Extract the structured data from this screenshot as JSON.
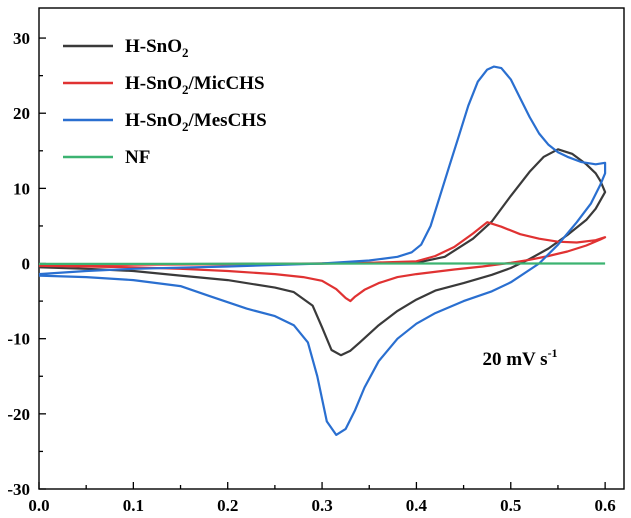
{
  "chart_data": {
    "type": "line",
    "title": "",
    "xlabel": "",
    "ylabel": "",
    "xlim": [
      0.0,
      0.62
    ],
    "ylim": [
      -30,
      34
    ],
    "x_ticks": [
      "0.0",
      "0.1",
      "0.2",
      "0.3",
      "0.4",
      "0.5",
      "0.6"
    ],
    "y_ticks": [
      "30",
      "20",
      "10",
      "0",
      "-10",
      "-20",
      "-30"
    ],
    "grid": false,
    "legend_position": "top-left",
    "annotation": {
      "text": "20 mV s",
      "superscript": "-1",
      "x": 0.47,
      "y": -13.5
    },
    "series": [
      {
        "name": "H-SnO",
        "name_sub": "2",
        "name_suffix": "",
        "color": "#3a3a3a",
        "points": [
          [
            0.0,
            -0.2
          ],
          [
            0.1,
            -0.1
          ],
          [
            0.2,
            -0.05
          ],
          [
            0.3,
            0.0
          ],
          [
            0.35,
            0.05
          ],
          [
            0.4,
            0.1
          ],
          [
            0.43,
            0.9
          ],
          [
            0.46,
            3.3
          ],
          [
            0.48,
            5.6
          ],
          [
            0.5,
            9.0
          ],
          [
            0.52,
            12.2
          ],
          [
            0.535,
            14.2
          ],
          [
            0.55,
            15.2
          ],
          [
            0.565,
            14.6
          ],
          [
            0.58,
            13.2
          ],
          [
            0.59,
            12.0
          ],
          [
            0.595,
            11.0
          ],
          [
            0.6,
            9.5
          ],
          [
            0.59,
            7.3
          ],
          [
            0.58,
            5.8
          ],
          [
            0.56,
            3.8
          ],
          [
            0.54,
            2.0
          ],
          [
            0.52,
            0.6
          ],
          [
            0.5,
            -0.6
          ],
          [
            0.48,
            -1.5
          ],
          [
            0.45,
            -2.6
          ],
          [
            0.42,
            -3.6
          ],
          [
            0.4,
            -4.8
          ],
          [
            0.38,
            -6.3
          ],
          [
            0.36,
            -8.2
          ],
          [
            0.34,
            -10.5
          ],
          [
            0.33,
            -11.6
          ],
          [
            0.32,
            -12.2
          ],
          [
            0.31,
            -11.5
          ],
          [
            0.3,
            -8.5
          ],
          [
            0.29,
            -5.6
          ],
          [
            0.27,
            -3.8
          ],
          [
            0.25,
            -3.2
          ],
          [
            0.2,
            -2.2
          ],
          [
            0.15,
            -1.6
          ],
          [
            0.1,
            -1.0
          ],
          [
            0.05,
            -0.7
          ],
          [
            0.0,
            -0.5
          ]
        ]
      },
      {
        "name": "H-SnO",
        "name_sub": "2",
        "name_suffix": "/MicCHS",
        "color": "#e03232",
        "points": [
          [
            0.0,
            -0.2
          ],
          [
            0.1,
            -0.15
          ],
          [
            0.2,
            -0.1
          ],
          [
            0.3,
            0.0
          ],
          [
            0.35,
            0.1
          ],
          [
            0.4,
            0.3
          ],
          [
            0.42,
            1.0
          ],
          [
            0.44,
            2.2
          ],
          [
            0.46,
            4.0
          ],
          [
            0.475,
            5.5
          ],
          [
            0.49,
            4.9
          ],
          [
            0.51,
            3.9
          ],
          [
            0.53,
            3.3
          ],
          [
            0.55,
            2.9
          ],
          [
            0.57,
            2.8
          ],
          [
            0.59,
            3.1
          ],
          [
            0.6,
            3.5
          ],
          [
            0.595,
            3.2
          ],
          [
            0.58,
            2.4
          ],
          [
            0.56,
            1.6
          ],
          [
            0.54,
            1.0
          ],
          [
            0.52,
            0.5
          ],
          [
            0.5,
            0.1
          ],
          [
            0.47,
            -0.4
          ],
          [
            0.44,
            -0.8
          ],
          [
            0.4,
            -1.4
          ],
          [
            0.38,
            -1.8
          ],
          [
            0.36,
            -2.6
          ],
          [
            0.345,
            -3.5
          ],
          [
            0.335,
            -4.4
          ],
          [
            0.33,
            -5.0
          ],
          [
            0.325,
            -4.6
          ],
          [
            0.315,
            -3.4
          ],
          [
            0.3,
            -2.3
          ],
          [
            0.28,
            -1.8
          ],
          [
            0.25,
            -1.4
          ],
          [
            0.2,
            -1.0
          ],
          [
            0.15,
            -0.7
          ],
          [
            0.1,
            -0.5
          ],
          [
            0.05,
            -0.4
          ],
          [
            0.0,
            -0.3
          ]
        ]
      },
      {
        "name": "H-SnO",
        "name_sub": "2",
        "name_suffix": "/MesCHS",
        "color": "#2a6fd0",
        "points": [
          [
            0.0,
            -1.4
          ],
          [
            0.05,
            -1.0
          ],
          [
            0.1,
            -0.7
          ],
          [
            0.2,
            -0.4
          ],
          [
            0.3,
            0.0
          ],
          [
            0.35,
            0.4
          ],
          [
            0.38,
            0.9
          ],
          [
            0.395,
            1.5
          ],
          [
            0.405,
            2.5
          ],
          [
            0.415,
            5.0
          ],
          [
            0.425,
            9.0
          ],
          [
            0.435,
            13.0
          ],
          [
            0.445,
            17.0
          ],
          [
            0.455,
            21.0
          ],
          [
            0.465,
            24.2
          ],
          [
            0.475,
            25.8
          ],
          [
            0.482,
            26.2
          ],
          [
            0.49,
            26.0
          ],
          [
            0.5,
            24.5
          ],
          [
            0.51,
            22.0
          ],
          [
            0.52,
            19.5
          ],
          [
            0.53,
            17.3
          ],
          [
            0.54,
            15.8
          ],
          [
            0.55,
            14.8
          ],
          [
            0.56,
            14.2
          ],
          [
            0.575,
            13.5
          ],
          [
            0.59,
            13.2
          ],
          [
            0.6,
            13.4
          ],
          [
            0.6,
            12.0
          ],
          [
            0.595,
            10.5
          ],
          [
            0.585,
            8.0
          ],
          [
            0.57,
            5.5
          ],
          [
            0.55,
            2.5
          ],
          [
            0.53,
            0.0
          ],
          [
            0.5,
            -2.5
          ],
          [
            0.48,
            -3.7
          ],
          [
            0.45,
            -5.0
          ],
          [
            0.42,
            -6.6
          ],
          [
            0.4,
            -8.0
          ],
          [
            0.38,
            -10.0
          ],
          [
            0.36,
            -13.0
          ],
          [
            0.345,
            -16.5
          ],
          [
            0.335,
            -19.5
          ],
          [
            0.325,
            -22.0
          ],
          [
            0.315,
            -22.8
          ],
          [
            0.305,
            -21.0
          ],
          [
            0.295,
            -15.0
          ],
          [
            0.285,
            -10.5
          ],
          [
            0.27,
            -8.2
          ],
          [
            0.25,
            -7.0
          ],
          [
            0.22,
            -6.0
          ],
          [
            0.18,
            -4.3
          ],
          [
            0.15,
            -3.0
          ],
          [
            0.1,
            -2.2
          ],
          [
            0.05,
            -1.8
          ],
          [
            0.0,
            -1.6
          ]
        ]
      },
      {
        "name": "NF",
        "name_sub": "",
        "name_suffix": "",
        "color": "#3cb371",
        "points": [
          [
            0.0,
            -0.05
          ],
          [
            0.1,
            -0.05
          ],
          [
            0.2,
            -0.03
          ],
          [
            0.3,
            -0.02
          ],
          [
            0.4,
            0.0
          ],
          [
            0.5,
            0.0
          ],
          [
            0.6,
            0.0
          ]
        ]
      }
    ]
  }
}
